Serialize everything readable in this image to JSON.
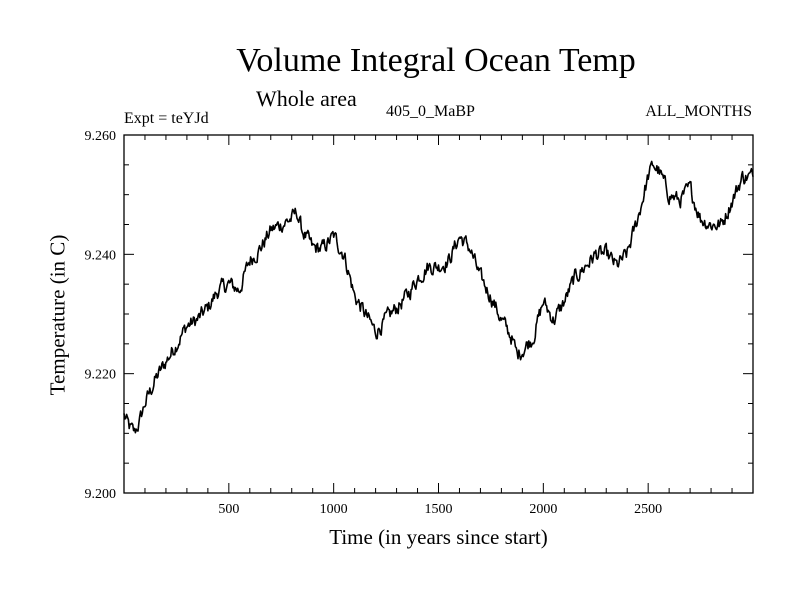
{
  "chart_data": {
    "type": "line",
    "title": "Volume Integral Ocean Temp",
    "subtitle": "Whole area",
    "left_string": "Expt = teYJd",
    "center_string": "405_0_MaBP",
    "right_string": "ALL_MONTHS",
    "xlabel": "Time (in years since start)",
    "ylabel": "Temperature (in C)",
    "xlim": [
      0,
      3000
    ],
    "ylim": [
      9.2,
      9.26
    ],
    "xticks": [
      500,
      1000,
      1500,
      2000,
      2500
    ],
    "xtick_labels": [
      "500",
      "1000",
      "1500",
      "2000",
      "2500"
    ],
    "yticks": [
      9.2,
      9.22,
      9.24,
      9.26
    ],
    "ytick_labels": [
      "9.200",
      "9.220",
      "9.240",
      "9.260"
    ],
    "grid": false,
    "line_color": "#000000",
    "series": [
      {
        "name": "Volume integral ocean temperature",
        "x": [
          0,
          25,
          50,
          75,
          100,
          150,
          200,
          250,
          300,
          350,
          400,
          450,
          500,
          550,
          600,
          650,
          700,
          750,
          800,
          825,
          850,
          900,
          950,
          1000,
          1050,
          1100,
          1150,
          1200,
          1250,
          1300,
          1350,
          1400,
          1450,
          1500,
          1550,
          1600,
          1650,
          1700,
          1750,
          1800,
          1850,
          1875,
          1900,
          1950,
          2000,
          2050,
          2100,
          2150,
          2200,
          2250,
          2300,
          2350,
          2400,
          2450,
          2500,
          2525,
          2550,
          2600,
          2650,
          2700,
          2750,
          2800,
          2850,
          2900,
          2950,
          3000
        ],
        "y": [
          9.213,
          9.211,
          9.21,
          9.212,
          9.215,
          9.219,
          9.222,
          9.225,
          9.228,
          9.229,
          9.231,
          9.234,
          9.235,
          9.234,
          9.239,
          9.241,
          9.244,
          9.245,
          9.246,
          9.247,
          9.244,
          9.241,
          9.241,
          9.243,
          9.24,
          9.233,
          9.23,
          9.227,
          9.229,
          9.231,
          9.233,
          9.236,
          9.238,
          9.238,
          9.239,
          9.243,
          9.241,
          9.236,
          9.233,
          9.229,
          9.226,
          9.223,
          9.224,
          9.226,
          9.232,
          9.229,
          9.232,
          9.236,
          9.238,
          9.24,
          9.24,
          9.238,
          9.24,
          9.246,
          9.253,
          9.255,
          9.254,
          9.25,
          9.249,
          9.251,
          9.246,
          9.245,
          9.245,
          9.249,
          9.253,
          9.253
        ]
      }
    ]
  }
}
